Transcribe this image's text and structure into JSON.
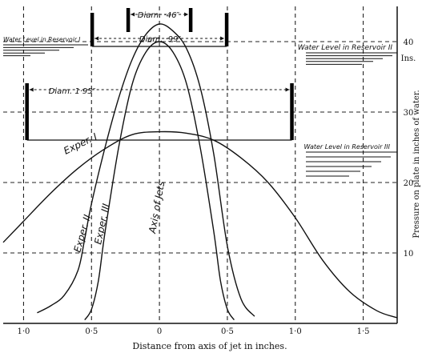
{
  "chart_data": {
    "type": "line",
    "title": "",
    "xlabel": "Distance from axis of jet in inches.",
    "ylabel": "Pressure on plate in inches of water.",
    "y_unit_label": "Ins.",
    "xlim": [
      -1.15,
      1.75
    ],
    "ylim": [
      0,
      45
    ],
    "x_ticks": [
      -1.0,
      -0.5,
      0,
      0.5,
      1.0,
      1.5
    ],
    "x_tick_labels": [
      "1·0",
      "0·5",
      "0",
      "0·5",
      "1·0",
      "1·5"
    ],
    "y_ticks": [
      10,
      20,
      30,
      40
    ],
    "y_tick_labels": [
      "10",
      "20",
      "30",
      "40"
    ],
    "grid": "dashed",
    "series": [
      {
        "name": "Exper. I",
        "x": [
          -1.15,
          -1.0,
          -0.8,
          -0.6,
          -0.4,
          -0.2,
          0.0,
          0.2,
          0.4,
          0.6,
          0.8,
          1.0,
          1.2,
          1.4,
          1.6,
          1.75
        ],
        "y": [
          11.5,
          14.5,
          18.5,
          22.0,
          24.8,
          26.8,
          27.2,
          27.0,
          26.0,
          23.5,
          20.0,
          15.0,
          9.0,
          4.5,
          1.8,
          0.8
        ]
      },
      {
        "name": "Exper. II",
        "x": [
          -0.9,
          -0.8,
          -0.7,
          -0.6,
          -0.55,
          -0.5,
          -0.4,
          -0.3,
          -0.2,
          -0.1,
          0.0,
          0.1,
          0.2,
          0.3,
          0.4,
          0.5,
          0.6,
          0.7
        ],
        "y": [
          1.5,
          2.5,
          4.0,
          7.5,
          12.0,
          17.0,
          25.0,
          32.0,
          37.5,
          41.0,
          42.5,
          41.5,
          39.0,
          33.5,
          24.0,
          11.0,
          3.5,
          1.0
        ]
      },
      {
        "name": "Exper. III",
        "x": [
          -0.55,
          -0.5,
          -0.45,
          -0.4,
          -0.3,
          -0.2,
          -0.1,
          0.0,
          0.1,
          0.2,
          0.3,
          0.4,
          0.45,
          0.5,
          0.55
        ],
        "y": [
          0.5,
          2.0,
          6.0,
          13.0,
          25.0,
          34.0,
          38.5,
          40.0,
          38.5,
          34.0,
          25.0,
          13.0,
          6.0,
          2.0,
          0.5
        ]
      }
    ],
    "annotations": {
      "axis_of_jets": "Axis of Jets",
      "diam_046": "Diam. ·46″",
      "diam_099": "Diam. ·99″",
      "diam_195": "Diam. 1·95″",
      "water_level_I": "Water Level in Reservoir I",
      "water_level_II": "Water Level in Reservoir II",
      "water_level_III": "Water Level in Reservoir III"
    }
  }
}
